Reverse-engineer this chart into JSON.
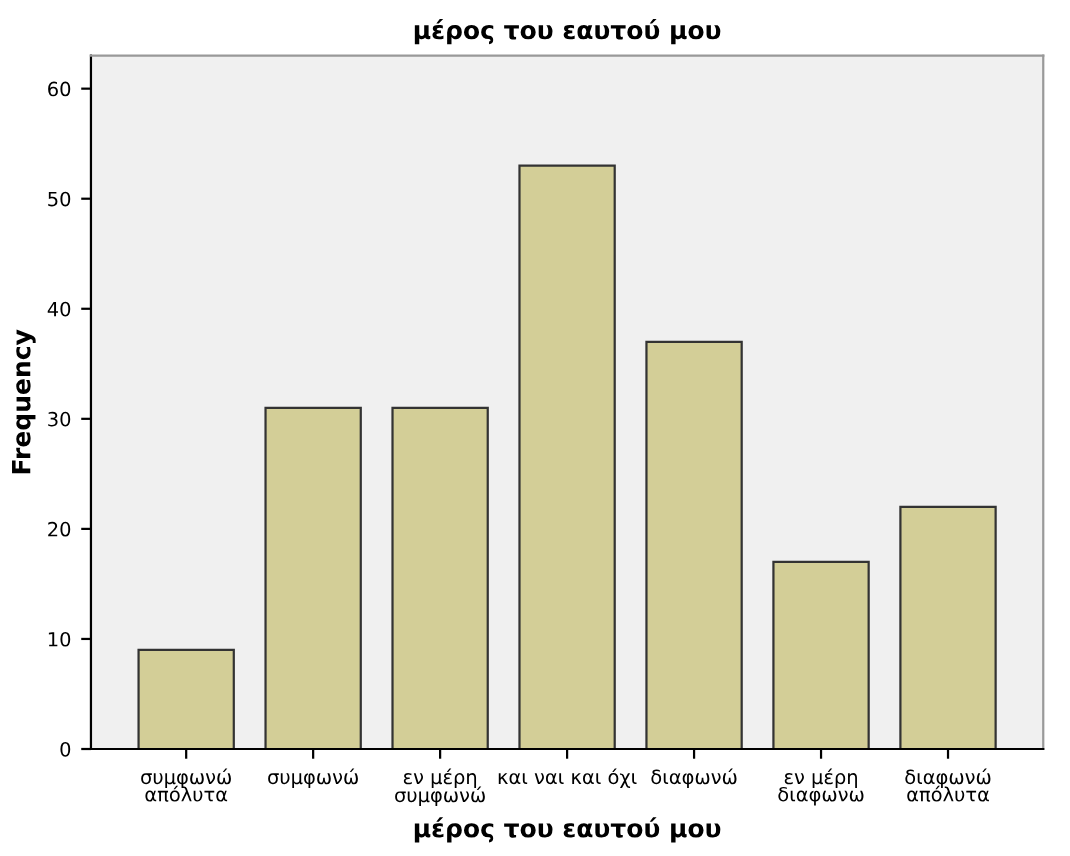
{
  "chart_data": {
    "type": "bar",
    "title": "μέρος του εαυτού μου",
    "xlabel": "μέρος του εαυτού μου",
    "ylabel": "Frequency",
    "categories": [
      "συμφωνώ\nαπόλυτα",
      "συμφωνώ",
      "εν μέρη\nσυμφωνώ",
      "και ναι και όχι",
      "διαφωνώ",
      "εν μέρη\nδιαφωνω",
      "διαφωνώ\nαπόλυτα"
    ],
    "values": [
      9,
      31,
      31,
      53,
      37,
      17,
      22
    ],
    "color": "#d3ce97",
    "ylim": [
      0,
      63
    ],
    "yticks": [
      0,
      10,
      20,
      30,
      40,
      50,
      60
    ],
    "grid": false,
    "legend": false
  }
}
